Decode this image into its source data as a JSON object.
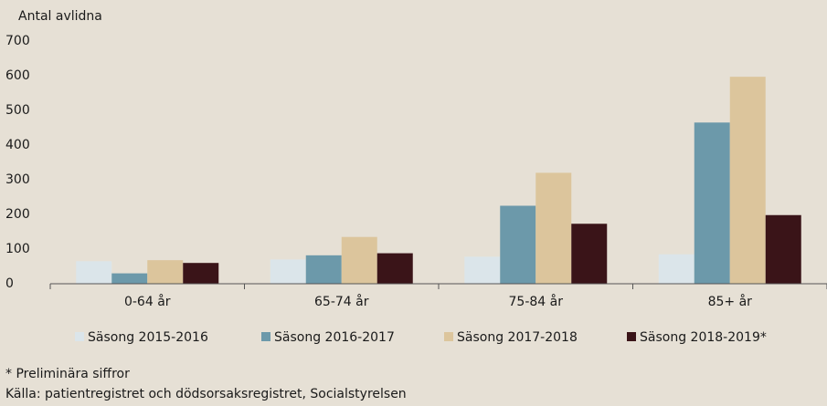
{
  "chart_data": {
    "type": "bar",
    "y_axis_label": "Antal avlidna",
    "categories": [
      "0-64 år",
      "65-74 år",
      "75-84 år",
      "85+ år"
    ],
    "series": [
      {
        "name": "Säsong 2015-2016",
        "color": "#dbe5ea",
        "values": [
          65,
          70,
          78,
          85
        ]
      },
      {
        "name": "Säsong 2016-2017",
        "color": "#6c99aa",
        "values": [
          30,
          82,
          225,
          465
        ]
      },
      {
        "name": "Säsong 2017-2018",
        "color": "#dcc59c",
        "values": [
          68,
          135,
          320,
          597
        ]
      },
      {
        "name": "Säsong 2018-2019*",
        "color": "#3a1418",
        "values": [
          60,
          88,
          173,
          198
        ]
      }
    ],
    "ylim": [
      0,
      700
    ],
    "yticks": [
      0,
      100,
      200,
      300,
      400,
      500,
      600,
      700
    ],
    "grid": false,
    "notes": [
      "* Preliminära siffror",
      "Källa: patientregistret och dödsorsaksregistret, Socialstyrelsen"
    ]
  }
}
